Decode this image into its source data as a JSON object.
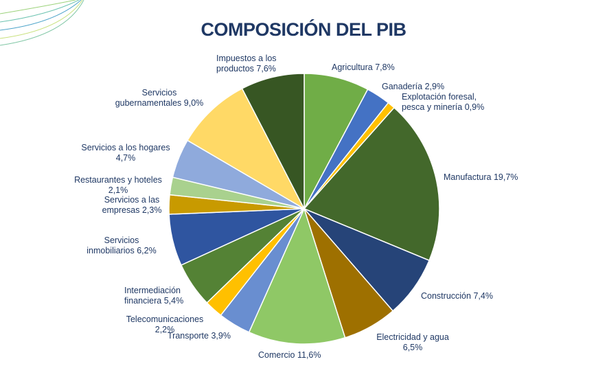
{
  "chart_data": {
    "type": "pie",
    "title": "COMPOSICIÓN DEL PIB",
    "categories": [
      "Agricultura",
      "Ganadería",
      "Explotación foresal, pesca y minería",
      "Manufactura",
      "Construcción",
      "Electricidad y agua",
      "Comercio",
      "Transporte",
      "Telecomunicaciones",
      "Intermediación financiera",
      "Servicios inmobiliarios",
      "Servicios a las empresas",
      "Restaurantes y hoteles",
      "Servicios a los hogares",
      "Servicios gubernamentales",
      "Impuestos a los productos"
    ],
    "values": [
      7.8,
      2.9,
      0.9,
      19.7,
      7.4,
      6.5,
      11.6,
      3.9,
      2.2,
      5.4,
      6.2,
      2.3,
      2.1,
      4.7,
      9.0,
      7.6
    ],
    "value_labels": [
      "7,8%",
      "2,9%",
      "0,9%",
      "19,7%",
      "7,4%",
      "6,5%",
      "11,6%",
      "3,9%",
      "2,2%",
      "5,4%",
      "6,2%",
      "2,3%",
      "2,1%",
      "4,7%",
      "9,0%",
      "7,6%"
    ],
    "colors": [
      "#70ad47",
      "#4472c4",
      "#ffc000",
      "#43682b",
      "#264478",
      "#9e7000",
      "#8fc866",
      "#698ed0",
      "#ffc000",
      "#548235",
      "#2f55a0",
      "#c89a00",
      "#a9d18e",
      "#8faadc",
      "#ffd966",
      "#375623"
    ]
  }
}
